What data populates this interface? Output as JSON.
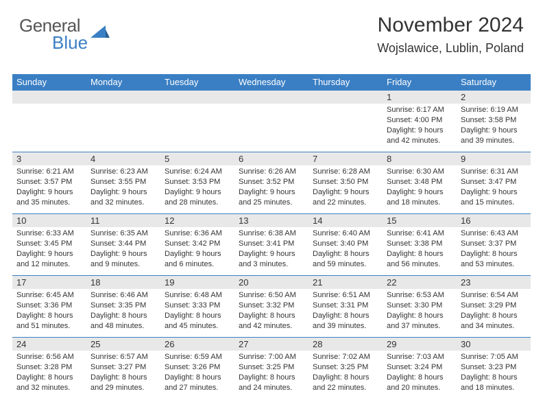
{
  "logo": {
    "word1": "General",
    "word2": "Blue"
  },
  "header": {
    "title": "November 2024",
    "location": "Wojslawice, Lublin, Poland"
  },
  "colors": {
    "header_bg": "#3a7fc4",
    "header_text": "#ffffff",
    "daynum_bg": "#e8e8e8",
    "text": "#333333",
    "logo_gray": "#555555",
    "logo_blue": "#3a7fc4",
    "cell_border": "#3a7fc4"
  },
  "dayNames": [
    "Sunday",
    "Monday",
    "Tuesday",
    "Wednesday",
    "Thursday",
    "Friday",
    "Saturday"
  ],
  "weeks": [
    [
      null,
      null,
      null,
      null,
      null,
      {
        "n": 1,
        "sr": "6:17 AM",
        "ss": "4:00 PM",
        "dl1": "Daylight: 9 hours",
        "dl2": "and 42 minutes."
      },
      {
        "n": 2,
        "sr": "6:19 AM",
        "ss": "3:58 PM",
        "dl1": "Daylight: 9 hours",
        "dl2": "and 39 minutes."
      }
    ],
    [
      {
        "n": 3,
        "sr": "6:21 AM",
        "ss": "3:57 PM",
        "dl1": "Daylight: 9 hours",
        "dl2": "and 35 minutes."
      },
      {
        "n": 4,
        "sr": "6:23 AM",
        "ss": "3:55 PM",
        "dl1": "Daylight: 9 hours",
        "dl2": "and 32 minutes."
      },
      {
        "n": 5,
        "sr": "6:24 AM",
        "ss": "3:53 PM",
        "dl1": "Daylight: 9 hours",
        "dl2": "and 28 minutes."
      },
      {
        "n": 6,
        "sr": "6:26 AM",
        "ss": "3:52 PM",
        "dl1": "Daylight: 9 hours",
        "dl2": "and 25 minutes."
      },
      {
        "n": 7,
        "sr": "6:28 AM",
        "ss": "3:50 PM",
        "dl1": "Daylight: 9 hours",
        "dl2": "and 22 minutes."
      },
      {
        "n": 8,
        "sr": "6:30 AM",
        "ss": "3:48 PM",
        "dl1": "Daylight: 9 hours",
        "dl2": "and 18 minutes."
      },
      {
        "n": 9,
        "sr": "6:31 AM",
        "ss": "3:47 PM",
        "dl1": "Daylight: 9 hours",
        "dl2": "and 15 minutes."
      }
    ],
    [
      {
        "n": 10,
        "sr": "6:33 AM",
        "ss": "3:45 PM",
        "dl1": "Daylight: 9 hours",
        "dl2": "and 12 minutes."
      },
      {
        "n": 11,
        "sr": "6:35 AM",
        "ss": "3:44 PM",
        "dl1": "Daylight: 9 hours",
        "dl2": "and 9 minutes."
      },
      {
        "n": 12,
        "sr": "6:36 AM",
        "ss": "3:42 PM",
        "dl1": "Daylight: 9 hours",
        "dl2": "and 6 minutes."
      },
      {
        "n": 13,
        "sr": "6:38 AM",
        "ss": "3:41 PM",
        "dl1": "Daylight: 9 hours",
        "dl2": "and 3 minutes."
      },
      {
        "n": 14,
        "sr": "6:40 AM",
        "ss": "3:40 PM",
        "dl1": "Daylight: 8 hours",
        "dl2": "and 59 minutes."
      },
      {
        "n": 15,
        "sr": "6:41 AM",
        "ss": "3:38 PM",
        "dl1": "Daylight: 8 hours",
        "dl2": "and 56 minutes."
      },
      {
        "n": 16,
        "sr": "6:43 AM",
        "ss": "3:37 PM",
        "dl1": "Daylight: 8 hours",
        "dl2": "and 53 minutes."
      }
    ],
    [
      {
        "n": 17,
        "sr": "6:45 AM",
        "ss": "3:36 PM",
        "dl1": "Daylight: 8 hours",
        "dl2": "and 51 minutes."
      },
      {
        "n": 18,
        "sr": "6:46 AM",
        "ss": "3:35 PM",
        "dl1": "Daylight: 8 hours",
        "dl2": "and 48 minutes."
      },
      {
        "n": 19,
        "sr": "6:48 AM",
        "ss": "3:33 PM",
        "dl1": "Daylight: 8 hours",
        "dl2": "and 45 minutes."
      },
      {
        "n": 20,
        "sr": "6:50 AM",
        "ss": "3:32 PM",
        "dl1": "Daylight: 8 hours",
        "dl2": "and 42 minutes."
      },
      {
        "n": 21,
        "sr": "6:51 AM",
        "ss": "3:31 PM",
        "dl1": "Daylight: 8 hours",
        "dl2": "and 39 minutes."
      },
      {
        "n": 22,
        "sr": "6:53 AM",
        "ss": "3:30 PM",
        "dl1": "Daylight: 8 hours",
        "dl2": "and 37 minutes."
      },
      {
        "n": 23,
        "sr": "6:54 AM",
        "ss": "3:29 PM",
        "dl1": "Daylight: 8 hours",
        "dl2": "and 34 minutes."
      }
    ],
    [
      {
        "n": 24,
        "sr": "6:56 AM",
        "ss": "3:28 PM",
        "dl1": "Daylight: 8 hours",
        "dl2": "and 32 minutes."
      },
      {
        "n": 25,
        "sr": "6:57 AM",
        "ss": "3:27 PM",
        "dl1": "Daylight: 8 hours",
        "dl2": "and 29 minutes."
      },
      {
        "n": 26,
        "sr": "6:59 AM",
        "ss": "3:26 PM",
        "dl1": "Daylight: 8 hours",
        "dl2": "and 27 minutes."
      },
      {
        "n": 27,
        "sr": "7:00 AM",
        "ss": "3:25 PM",
        "dl1": "Daylight: 8 hours",
        "dl2": "and 24 minutes."
      },
      {
        "n": 28,
        "sr": "7:02 AM",
        "ss": "3:25 PM",
        "dl1": "Daylight: 8 hours",
        "dl2": "and 22 minutes."
      },
      {
        "n": 29,
        "sr": "7:03 AM",
        "ss": "3:24 PM",
        "dl1": "Daylight: 8 hours",
        "dl2": "and 20 minutes."
      },
      {
        "n": 30,
        "sr": "7:05 AM",
        "ss": "3:23 PM",
        "dl1": "Daylight: 8 hours",
        "dl2": "and 18 minutes."
      }
    ]
  ],
  "labels": {
    "sunrise": "Sunrise:",
    "sunset": "Sunset:"
  }
}
